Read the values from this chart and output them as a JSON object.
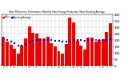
{
  "title": "Solar PV/Inverter Performance Monthly Solar Energy Production Value Running Average",
  "ylim": [
    0,
    400
  ],
  "yticks": [
    0,
    50,
    100,
    150,
    200,
    250,
    300,
    350,
    400
  ],
  "bar_color": "#ee0000",
  "avg_color": "#0000cc",
  "categories": [
    "Jan\n'17",
    "Feb\n'17",
    "Mar\n'17",
    "Apr\n'17",
    "May\n'17",
    "Jun\n'17",
    "Jul\n'17",
    "Aug\n'17",
    "Sep\n'17",
    "Oct\n'17",
    "Nov\n'17",
    "Dec\n'17",
    "Jan\n'18",
    "Feb\n'18",
    "Mar\n'18",
    "Apr\n'18",
    "May\n'18",
    "Jun\n'18",
    "Jul\n'18",
    "Aug\n'18",
    "Sep\n'18",
    "Oct\n'18",
    "Nov\n'18",
    "Dec\n'18",
    "Jan\n'19",
    "Feb\n'19",
    "Mar\n'19",
    "Apr\n'19",
    "May\n'19",
    "Jun\n'19"
  ],
  "values": [
    220,
    185,
    160,
    130,
    95,
    155,
    215,
    305,
    255,
    250,
    215,
    210,
    225,
    175,
    150,
    115,
    95,
    170,
    375,
    340,
    195,
    155,
    125,
    220,
    220,
    190,
    200,
    205,
    265,
    330
  ],
  "background_color": "#ffffff",
  "grid_color": "#bbbbbb",
  "legend_value_label": "Value",
  "legend_avg_label": "Running Average"
}
